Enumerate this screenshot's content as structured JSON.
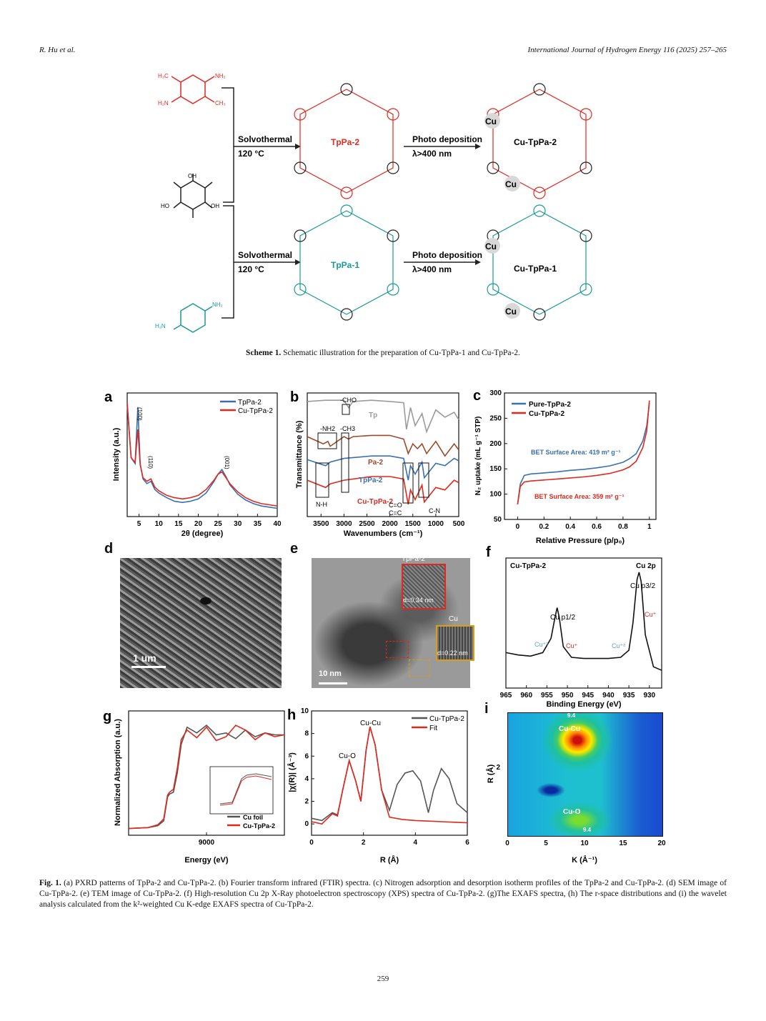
{
  "header": {
    "authors": "R. Hu et al.",
    "journal": "International Journal of Hydrogen Energy 116 (2025) 257–265"
  },
  "scheme": {
    "step1": "Solvothermal",
    "temp": "120 °C",
    "step2": "Photo deposition",
    "wavelength": "λ>400 nm",
    "product_a": "TpPa-2",
    "product_b": "TpPa-1",
    "final_a": "Cu-TpPa-2",
    "final_b": "Cu-TpPa-1",
    "cu": "Cu",
    "caption_label": "Scheme 1.",
    "caption_text": "Schematic illustration for the preparation of Cu-TpPa-1 and Cu-TpPa-2.",
    "colors": {
      "red": "#e0281e",
      "teal": "#1a9a95",
      "black": "#222222"
    }
  },
  "panels": {
    "a": {
      "letter": "a",
      "legend": [
        "TpPa-2",
        "Cu-TpPa-2"
      ],
      "peaks": [
        "(100)",
        "(110)",
        "(001)"
      ]
    },
    "b": {
      "letter": "b",
      "labels": [
        "-CHO",
        "Tp",
        "-NH2",
        "-CH3",
        "Pa-2",
        "TpPa-2",
        "Cu-TpPa-2",
        "N-H",
        "C=O",
        "C=C",
        "C-N"
      ]
    },
    "c": {
      "letter": "c",
      "legend": [
        "Pure-TpPa-2",
        "Cu-TpPa-2"
      ],
      "bet1": "BET Surface Area: 419 m² g⁻¹",
      "bet2": "BET Surface Area: 359 m² g⁻¹"
    },
    "d": {
      "letter": "d",
      "scale": "1 um"
    },
    "e": {
      "letter": "e",
      "scale": "10 nm",
      "inset1": "TpPa-2",
      "inset1_d": "d=0.34 nm",
      "inset2": "Cu",
      "inset2_d": "d=0.22 nm"
    },
    "f": {
      "letter": "f",
      "sample": "Cu-TpPa-2",
      "region": "Cu 2p",
      "p32": "Cu p3/2",
      "p12": "Cu p1/2",
      "cu1": "Cu⁺",
      "cu2": "Cu⁺²"
    },
    "g": {
      "letter": "g",
      "legend": [
        "Cu foil",
        "Cu-TpPa-2"
      ]
    },
    "h": {
      "letter": "h",
      "legend": [
        "Cu-TpPa-2",
        "Fit"
      ],
      "peak1": "Cu-O",
      "peak2": "Cu-Cu"
    },
    "i": {
      "letter": "i",
      "peak1": "Cu-Cu",
      "peak2": "Cu-O",
      "marker": "9.4"
    }
  },
  "chart_data": [
    {
      "panel": "a",
      "type": "line",
      "xlabel": "2θ (degree)",
      "ylabel": "Intensity (a.u.)",
      "xlim": [
        2,
        40
      ],
      "xticks": [
        5,
        10,
        15,
        20,
        25,
        30,
        35,
        40
      ],
      "series": [
        {
          "name": "TpPa-2",
          "color": "#3a6fb0",
          "x": [
            2,
            3,
            4,
            4.7,
            5.3,
            6,
            7,
            8,
            9,
            10,
            12,
            14,
            16,
            18,
            20,
            22,
            24,
            25,
            26,
            27,
            28,
            30,
            32,
            34,
            36,
            38,
            40
          ],
          "y": [
            0.95,
            0.5,
            0.45,
            0.93,
            0.45,
            0.32,
            0.28,
            0.3,
            0.23,
            0.2,
            0.16,
            0.13,
            0.12,
            0.13,
            0.15,
            0.2,
            0.3,
            0.36,
            0.4,
            0.34,
            0.27,
            0.19,
            0.14,
            0.11,
            0.09,
            0.08,
            0.07
          ]
        },
        {
          "name": "Cu-TpPa-2",
          "color": "#e0281e",
          "x": [
            2,
            3,
            4,
            4.7,
            5.3,
            6,
            7,
            8,
            9,
            10,
            12,
            14,
            16,
            18,
            20,
            22,
            24,
            25,
            26,
            27,
            28,
            30,
            32,
            34,
            36,
            38,
            40
          ],
          "y": [
            0.97,
            0.5,
            0.46,
            0.74,
            0.44,
            0.33,
            0.3,
            0.32,
            0.25,
            0.22,
            0.18,
            0.16,
            0.15,
            0.16,
            0.18,
            0.23,
            0.31,
            0.36,
            0.38,
            0.33,
            0.28,
            0.21,
            0.16,
            0.13,
            0.11,
            0.1,
            0.09
          ]
        }
      ]
    },
    {
      "panel": "b",
      "type": "line",
      "xlabel": "Wavenumbers (cm⁻¹)",
      "ylabel": "Transmittance (%)",
      "xlim": [
        3800,
        500
      ],
      "xticks": [
        3500,
        3000,
        2500,
        2000,
        1500,
        1000,
        500
      ],
      "series": [
        {
          "name": "Tp",
          "color": "#9b9b9b",
          "x": [
            3800,
            3400,
            3000,
            2900,
            2800,
            2400,
            2000,
            1700,
            1640,
            1550,
            1450,
            1300,
            1200,
            1000,
            800,
            600,
            500
          ],
          "y": [
            0.95,
            0.96,
            0.96,
            0.9,
            0.95,
            0.96,
            0.95,
            0.94,
            0.72,
            0.9,
            0.75,
            0.85,
            0.7,
            0.88,
            0.82,
            0.86,
            0.8
          ]
        },
        {
          "name": "Pa-2",
          "color": "#9a4a2a",
          "x": [
            3800,
            3450,
            3350,
            3300,
            3000,
            2900,
            2800,
            2400,
            2000,
            1700,
            1600,
            1500,
            1400,
            1300,
            1200,
            1000,
            800,
            600,
            500
          ],
          "y": [
            0.66,
            0.6,
            0.62,
            0.58,
            0.66,
            0.64,
            0.66,
            0.67,
            0.67,
            0.64,
            0.52,
            0.6,
            0.56,
            0.6,
            0.52,
            0.62,
            0.5,
            0.6,
            0.55
          ]
        },
        {
          "name": "TpPa-2",
          "color": "#3a6fb0",
          "x": [
            3800,
            3400,
            3300,
            3000,
            2400,
            2000,
            1700,
            1600,
            1550,
            1450,
            1300,
            1250,
            1000,
            800,
            600,
            500
          ],
          "y": [
            0.47,
            0.42,
            0.45,
            0.48,
            0.5,
            0.5,
            0.48,
            0.3,
            0.42,
            0.35,
            0.45,
            0.32,
            0.44,
            0.42,
            0.48,
            0.46
          ]
        },
        {
          "name": "Cu-TpPa-2",
          "color": "#e0281e",
          "x": [
            3800,
            3400,
            3300,
            3000,
            2400,
            2000,
            1700,
            1600,
            1550,
            1450,
            1300,
            1250,
            1000,
            800,
            600,
            500
          ],
          "y": [
            0.3,
            0.24,
            0.27,
            0.3,
            0.33,
            0.33,
            0.31,
            0.1,
            0.22,
            0.14,
            0.26,
            0.12,
            0.24,
            0.22,
            0.3,
            0.28
          ]
        }
      ]
    },
    {
      "panel": "c",
      "type": "line",
      "xlabel": "Relative Pressure (p/p₀)",
      "ylabel": "N₂ uptake (mL g⁻¹ STP)",
      "xlim": [
        -0.1,
        1.05
      ],
      "ylim": [
        50,
        300
      ],
      "xticks": [
        0.0,
        0.2,
        0.4,
        0.6,
        0.8,
        1.0
      ],
      "yticks": [
        50,
        100,
        150,
        200,
        250,
        300
      ],
      "series": [
        {
          "name": "Pure-TpPa-2",
          "color": "#3a6fb0",
          "x": [
            0.0,
            0.02,
            0.05,
            0.1,
            0.2,
            0.3,
            0.4,
            0.5,
            0.6,
            0.7,
            0.8,
            0.85,
            0.9,
            0.95,
            0.98,
            1.0
          ],
          "y": [
            80,
            120,
            137,
            140,
            142,
            144,
            147,
            149,
            152,
            156,
            163,
            170,
            180,
            205,
            235,
            280
          ]
        },
        {
          "name": "Cu-TpPa-2",
          "color": "#e0281e",
          "x": [
            0.0,
            0.02,
            0.05,
            0.1,
            0.2,
            0.3,
            0.4,
            0.5,
            0.6,
            0.7,
            0.8,
            0.85,
            0.9,
            0.95,
            0.98,
            1.0
          ],
          "y": [
            80,
            115,
            124,
            126,
            128,
            130,
            132,
            134,
            137,
            141,
            148,
            154,
            165,
            192,
            225,
            285
          ]
        }
      ]
    },
    {
      "panel": "f",
      "type": "line",
      "xlabel": "Binding Energy (eV)",
      "ylabel": "",
      "xlim": [
        965,
        927
      ],
      "xticks": [
        965,
        960,
        955,
        950,
        945,
        940,
        935,
        930
      ],
      "series": [
        {
          "name": "Cu 2p",
          "color": "#111111",
          "x": [
            965,
            962,
            959,
            956,
            954,
            953,
            952.5,
            952,
            951,
            949,
            946,
            943,
            940,
            937,
            935,
            934,
            933,
            932.5,
            932,
            931,
            929,
            927
          ],
          "y": [
            0.3,
            0.28,
            0.27,
            0.3,
            0.42,
            0.6,
            0.68,
            0.6,
            0.35,
            0.26,
            0.25,
            0.25,
            0.25,
            0.26,
            0.32,
            0.55,
            0.92,
            0.98,
            0.9,
            0.45,
            0.18,
            0.15
          ]
        }
      ]
    },
    {
      "panel": "g",
      "type": "line",
      "xlabel": "Energy (eV)",
      "ylabel": "Normalized Absorption (a.u.)",
      "xlim": [
        8960,
        9040
      ],
      "xticks": [
        9000
      ],
      "series": [
        {
          "name": "Cu foil",
          "color": "#555555",
          "x": [
            8960,
            8970,
            8975,
            8978,
            8980,
            8981,
            8983,
            8985,
            8987,
            8990,
            8995,
            9000,
            9005,
            9010,
            9015,
            9020,
            9025,
            9030,
            9035,
            9040
          ],
          "y": [
            0.02,
            0.03,
            0.05,
            0.1,
            0.35,
            0.38,
            0.4,
            0.6,
            0.9,
            1.08,
            1.02,
            1.1,
            1.0,
            1.02,
            0.96,
            1.05,
            0.98,
            1.02,
            1.0,
            1.0
          ]
        },
        {
          "name": "Cu-TpPa-2",
          "color": "#e0281e",
          "x": [
            8960,
            8970,
            8975,
            8978,
            8980,
            8981,
            8983,
            8985,
            8987,
            8990,
            8995,
            9000,
            9005,
            9010,
            9015,
            9020,
            9025,
            9030,
            9035,
            9040
          ],
          "y": [
            0.02,
            0.03,
            0.06,
            0.12,
            0.37,
            0.4,
            0.43,
            0.65,
            0.95,
            1.05,
            0.97,
            1.08,
            0.94,
            0.98,
            1.1,
            1.05,
            0.95,
            1.02,
            0.98,
            1.0
          ]
        }
      ]
    },
    {
      "panel": "h",
      "type": "line",
      "xlabel": "R (Å)",
      "ylabel": "|χ(R)| (Å⁻³)",
      "xlim": [
        0,
        6
      ],
      "ylim": [
        -1,
        10
      ],
      "xticks": [
        0,
        2,
        4,
        6
      ],
      "yticks": [
        0,
        2,
        4,
        6,
        8,
        10
      ],
      "series": [
        {
          "name": "Cu-TpPa-2",
          "color": "#555555",
          "x": [
            0,
            0.4,
            0.8,
            1.0,
            1.2,
            1.45,
            1.7,
            1.9,
            2.1,
            2.25,
            2.45,
            2.7,
            3.0,
            3.3,
            3.6,
            3.9,
            4.2,
            4.5,
            4.7,
            5.0,
            5.3,
            5.6,
            6.0
          ],
          "y": [
            0.5,
            0.3,
            1.0,
            0.8,
            3.0,
            5.6,
            3.8,
            2.0,
            6.5,
            8.6,
            7.0,
            3.0,
            1.2,
            3.5,
            4.5,
            4.7,
            3.8,
            1.0,
            3.0,
            4.9,
            4.0,
            1.8,
            1.0
          ]
        },
        {
          "name": "Fit",
          "color": "#e0281e",
          "x": [
            0,
            0.4,
            0.8,
            1.0,
            1.2,
            1.45,
            1.7,
            1.9,
            2.1,
            2.25,
            2.45,
            2.7,
            3.0,
            3.5,
            4.0,
            4.5,
            5.0,
            5.5,
            6.0
          ],
          "y": [
            0.2,
            0.0,
            0.9,
            0.7,
            3.0,
            5.6,
            3.8,
            2.0,
            6.5,
            8.6,
            7.0,
            3.0,
            0.6,
            0.4,
            0.3,
            0.25,
            0.2,
            0.15,
            0.1
          ]
        }
      ]
    },
    {
      "panel": "i",
      "type": "heatmap",
      "xlabel": "K (Å⁻¹)",
      "ylabel": "R (Å)",
      "xlim": [
        0,
        20
      ],
      "xticks": [
        0,
        5,
        10,
        15,
        20
      ],
      "yticks": [
        2
      ]
    }
  ],
  "figure_caption": {
    "label": "Fig. 1.",
    "text": "(a) PXRD patterns of TpPa-2 and Cu-TpPa-2. (b) Fourier transform infrared (FTIR) spectra. (c) Nitrogen adsorption and desorption isotherm profiles of the TpPa-2 and Cu-TpPa-2. (d) SEM image of Cu-TpPa-2. (e) TEM image of Cu-TpPa-2. (f) High-resolution Cu 2p X-Ray photoelectron spectroscopy (XPS) spectra of Cu-TpPa-2. (g)The EXAFS spectra, (h) The r-space distributions and (i) the wavelet analysis calculated from the k²-weighted Cu K-edge EXAFS spectra of Cu-TpPa-2."
  },
  "page_number": "259"
}
